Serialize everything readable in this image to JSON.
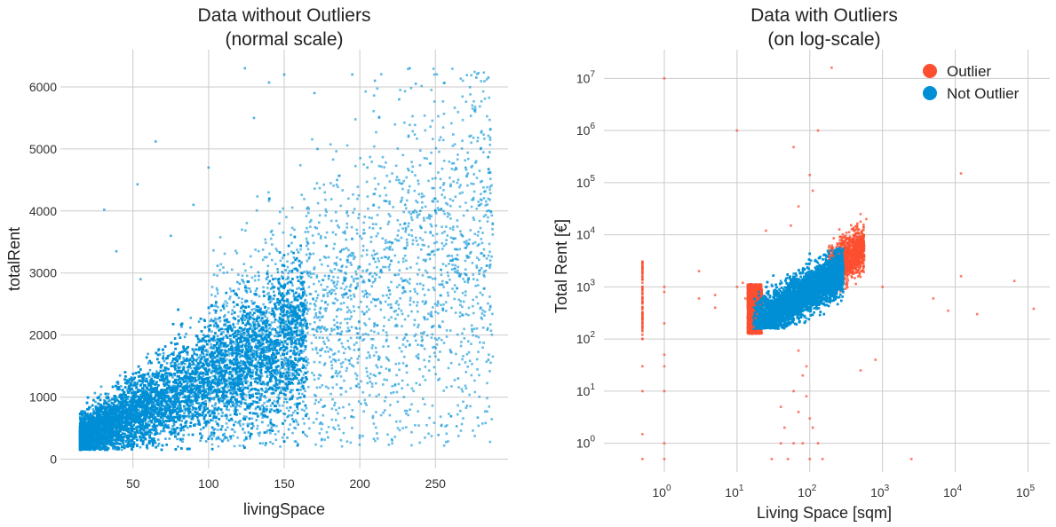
{
  "colors": {
    "outlier": "#fc4f30",
    "not_outlier": "#008fd5",
    "grid": "#cbcbcb",
    "background": "#ffffff"
  },
  "chart_data": [
    {
      "type": "scatter",
      "title": [
        "Data without Outliers",
        "(normal scale)"
      ],
      "xlabel": "livingSpace",
      "ylabel": "totalRent",
      "xlim": [
        2,
        298
      ],
      "ylim": [
        -150,
        6600
      ],
      "xscale": "linear",
      "yscale": "linear",
      "xticks": [
        50,
        100,
        150,
        200,
        250
      ],
      "yticks": [
        0,
        1000,
        2000,
        3000,
        4000,
        5000,
        6000
      ],
      "grid": true,
      "series": [
        {
          "color_key": "not_outlier",
          "description_of_density": "dense main cloud from x≈15-160, y≈200-2500; sparse spread up to x≈285, y≈6300",
          "sample_points": [
            [
              20,
              300
            ],
            [
              30,
              500
            ],
            [
              40,
              600
            ],
            [
              50,
              800
            ],
            [
              60,
              900
            ],
            [
              70,
              1100
            ],
            [
              80,
              1200
            ],
            [
              90,
              1300
            ],
            [
              100,
              1500
            ],
            [
              110,
              1600
            ],
            [
              120,
              1800
            ],
            [
              130,
              1900
            ],
            [
              140,
              2000
            ],
            [
              150,
              2200
            ],
            [
              160,
              2300
            ],
            [
              170,
              2500
            ],
            [
              180,
              2700
            ],
            [
              190,
              2900
            ],
            [
              200,
              3100
            ],
            [
              210,
              3300
            ],
            [
              220,
              3500
            ],
            [
              230,
              3800
            ],
            [
              240,
              4000
            ],
            [
              250,
              4200
            ],
            [
              260,
              4400
            ],
            [
              270,
              4700
            ],
            [
              280,
              5000
            ],
            [
              285,
              6150
            ],
            [
              31,
              4020
            ],
            [
              53,
              4430
            ],
            [
              65,
              5120
            ],
            [
              124,
              6300
            ],
            [
              140,
              6070
            ],
            [
              150,
              6200
            ],
            [
              195,
              6200
            ],
            [
              233,
              6300
            ],
            [
              237,
              6050
            ],
            [
              210,
              6100
            ],
            [
              226,
              5800
            ],
            [
              277,
              6150
            ],
            [
              252,
              390
            ],
            [
              200,
              380
            ],
            [
              113,
              300
            ],
            [
              150,
              400
            ],
            [
              179,
              350
            ],
            [
              264,
              530
            ],
            [
              278,
              670
            ],
            [
              110,
              1960
            ],
            [
              120,
              2600
            ],
            [
              185,
              2400
            ],
            [
              265,
              1300
            ],
            [
              285,
              1600
            ],
            [
              252,
              1600
            ],
            [
              39,
              3350
            ],
            [
              55,
              2900
            ],
            [
              75,
              3600
            ],
            [
              90,
              4100
            ],
            [
              100,
              4700
            ],
            [
              130,
              5500
            ],
            [
              172,
              5000
            ],
            [
              170,
              5900
            ],
            [
              185,
              4500
            ],
            [
              205,
              4700
            ],
            [
              230,
              4100
            ],
            [
              245,
              3300
            ],
            [
              260,
              3200
            ],
            [
              272,
              2900
            ]
          ]
        }
      ]
    },
    {
      "type": "scatter",
      "title": [
        "Data with Outliers",
        "(on log-scale)"
      ],
      "xlabel": "Living Space [sqm]",
      "ylabel": "Total Rent [€]",
      "xlim_log10": [
        -0.83,
        5.3
      ],
      "ylim_log10": [
        -0.55,
        7.55
      ],
      "xscale": "log",
      "yscale": "log",
      "xticks": [
        {
          "base": "10",
          "exp": "0"
        },
        {
          "base": "10",
          "exp": "1"
        },
        {
          "base": "10",
          "exp": "2"
        },
        {
          "base": "10",
          "exp": "3"
        },
        {
          "base": "10",
          "exp": "4"
        },
        {
          "base": "10",
          "exp": "5"
        }
      ],
      "yticks": [
        {
          "base": "10",
          "exp": "0"
        },
        {
          "base": "10",
          "exp": "1"
        },
        {
          "base": "10",
          "exp": "2"
        },
        {
          "base": "10",
          "exp": "3"
        },
        {
          "base": "10",
          "exp": "4"
        },
        {
          "base": "10",
          "exp": "5"
        },
        {
          "base": "10",
          "exp": "6"
        },
        {
          "base": "10",
          "exp": "7"
        }
      ],
      "grid": true,
      "legend": {
        "placement": "top-right",
        "entries": [
          {
            "label": "Outlier",
            "color_key": "outlier"
          },
          {
            "label": "Not Outlier",
            "color_key": "not_outlier"
          }
        ]
      },
      "series": [
        {
          "name": "Outlier",
          "color_key": "outlier",
          "sample_points": [
            [
              1,
              10000000
            ],
            [
              10,
              1000000
            ],
            [
              130,
              1000000
            ],
            [
              200,
              16000000
            ],
            [
              60,
              480000
            ],
            [
              100,
              140000
            ],
            [
              12000,
              150000
            ],
            [
              70,
              35000
            ],
            [
              25,
              12000
            ],
            [
              55,
              15000
            ],
            [
              110,
              70000
            ],
            [
              0.5,
              3000
            ],
            [
              0.5,
              2000
            ],
            [
              0.5,
              1200
            ],
            [
              0.5,
              1000
            ],
            [
              0.5,
              800
            ],
            [
              0.5,
              600
            ],
            [
              0.5,
              400
            ],
            [
              0.5,
              300
            ],
            [
              0.5,
              200
            ],
            [
              0.5,
              100
            ],
            [
              0.5,
              30
            ],
            [
              0.5,
              10
            ],
            [
              0.5,
              1.5
            ],
            [
              0.5,
              0.5
            ],
            [
              1,
              1000
            ],
            [
              1,
              800
            ],
            [
              1,
              200
            ],
            [
              1,
              50
            ],
            [
              1,
              30
            ],
            [
              1,
              10
            ],
            [
              1,
              1
            ],
            [
              1,
              0.5
            ],
            [
              3,
              2000
            ],
            [
              3,
              600
            ],
            [
              5,
              700
            ],
            [
              5,
              400
            ],
            [
              10,
              1000
            ],
            [
              13,
              600
            ],
            [
              14,
              400
            ],
            [
              15,
              700
            ],
            [
              16,
              800
            ],
            [
              17,
              500
            ],
            [
              18,
              900
            ],
            [
              19,
              300
            ],
            [
              16,
              1100
            ],
            [
              16,
              350
            ],
            [
              18,
              250
            ],
            [
              17,
              170
            ],
            [
              14,
              900
            ],
            [
              12,
              1200
            ],
            [
              20,
              600
            ],
            [
              300,
              6000
            ],
            [
              350,
              8000
            ],
            [
              400,
              12000
            ],
            [
              450,
              15000
            ],
            [
              500,
              9000
            ],
            [
              300,
              4000
            ],
            [
              350,
              3000
            ],
            [
              400,
              5000
            ],
            [
              600,
              20000
            ],
            [
              500,
              25000
            ],
            [
              280,
              9000
            ],
            [
              260,
              7000
            ],
            [
              320,
              5500
            ],
            [
              380,
              7500
            ],
            [
              420,
              10000
            ],
            [
              450,
              6000
            ],
            [
              550,
              14000
            ],
            [
              5000,
              600
            ],
            [
              8000,
              350
            ],
            [
              12000,
              1600
            ],
            [
              20000,
              300
            ],
            [
              65000,
              1300
            ],
            [
              120000,
              380
            ],
            [
              2500,
              0.5
            ],
            [
              150,
              0.5
            ],
            [
              100,
              0.5
            ],
            [
              80,
              1
            ],
            [
              60,
              1
            ],
            [
              50,
              0.5
            ],
            [
              40,
              5
            ],
            [
              60,
              10
            ],
            [
              70,
              4
            ],
            [
              80,
              20
            ],
            [
              90,
              8
            ],
            [
              100,
              3
            ],
            [
              110,
              2
            ],
            [
              130,
              1
            ],
            [
              90,
              30
            ],
            [
              70,
              60
            ],
            [
              1000,
              1000
            ],
            [
              800,
              40
            ],
            [
              500,
              25
            ],
            [
              30,
              0.5
            ],
            [
              40,
              1
            ],
            [
              45,
              2
            ]
          ]
        },
        {
          "name": "Not Outlier",
          "color_key": "not_outlier",
          "description_of_density": "dense cloud roughly x 16-290 sqm, y 150-6000 €, sloping upward",
          "sample_points": [
            [
              17,
              200
            ],
            [
              20,
              300
            ],
            [
              25,
              350
            ],
            [
              30,
              400
            ],
            [
              35,
              450
            ],
            [
              40,
              500
            ],
            [
              50,
              600
            ],
            [
              60,
              700
            ],
            [
              70,
              800
            ],
            [
              80,
              900
            ],
            [
              90,
              1000
            ],
            [
              100,
              1200
            ],
            [
              120,
              1500
            ],
            [
              150,
              1800
            ],
            [
              180,
              2200
            ],
            [
              200,
              2500
            ],
            [
              220,
              3000
            ],
            [
              250,
              3500
            ],
            [
              280,
              4000
            ],
            [
              290,
              5500
            ],
            [
              20,
              800
            ],
            [
              25,
              1000
            ],
            [
              30,
              1100
            ],
            [
              40,
              1300
            ],
            [
              50,
              1500
            ],
            [
              60,
              1800
            ],
            [
              80,
              2200
            ],
            [
              100,
              2800
            ],
            [
              120,
              3300
            ],
            [
              140,
              3800
            ],
            [
              160,
              4200
            ],
            [
              180,
              4500
            ],
            [
              200,
              5000
            ],
            [
              60,
              300
            ],
            [
              80,
              400
            ],
            [
              100,
              500
            ],
            [
              120,
              600
            ],
            [
              150,
              800
            ],
            [
              200,
              1000
            ],
            [
              250,
              1200
            ],
            [
              230,
              700
            ],
            [
              280,
              2000
            ],
            [
              270,
              1300
            ],
            [
              45,
              180
            ],
            [
              35,
              160
            ],
            [
              90,
              250
            ]
          ]
        }
      ]
    }
  ]
}
